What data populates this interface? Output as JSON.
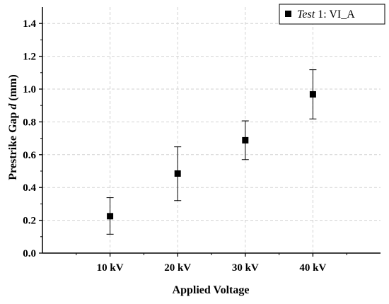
{
  "chart_data": {
    "type": "scatter",
    "xlabel": "Applied Voltage",
    "ylabel_parts": [
      "Prestrike Gap ",
      "d",
      " (mm)"
    ],
    "ylabel": "Prestrike Gap d (mm)",
    "categories": [
      "10 kV",
      "20 kV",
      "30 kV",
      "40 kV"
    ],
    "ylim": [
      0.0,
      1.5
    ],
    "yticks": [
      0.0,
      0.2,
      0.4,
      0.6,
      0.8,
      1.0,
      1.2,
      1.4
    ],
    "ytick_labels": [
      "0.0",
      "0.2",
      "0.4",
      "0.6",
      "0.8",
      "1.0",
      "1.2",
      "1.4"
    ],
    "grid": true,
    "legend_position": "top-right",
    "series": [
      {
        "name": "Test 1: VI_A",
        "name_parts": [
          "Test",
          " 1: VI_A"
        ],
        "marker": "square",
        "color": "#000000",
        "values": [
          0.225,
          0.485,
          0.688,
          0.968
        ],
        "error_low": [
          0.115,
          0.32,
          0.57,
          0.818
        ],
        "error_high": [
          0.338,
          0.648,
          0.806,
          1.118
        ]
      }
    ]
  }
}
